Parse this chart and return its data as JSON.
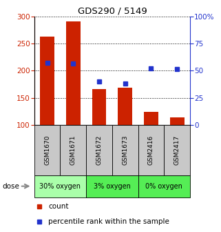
{
  "title": "GDS290 / 5149",
  "samples": [
    "GSM1670",
    "GSM1671",
    "GSM1672",
    "GSM1673",
    "GSM2416",
    "GSM2417"
  ],
  "counts": [
    263,
    291,
    167,
    169,
    124,
    115
  ],
  "percentile_left_axis": [
    215,
    213,
    180,
    176,
    204,
    203
  ],
  "ylim_left": [
    100,
    300
  ],
  "ylim_right": [
    0,
    100
  ],
  "yticks_left": [
    100,
    150,
    200,
    250,
    300
  ],
  "yticks_right": [
    0,
    25,
    50,
    75,
    100
  ],
  "bar_color": "#cc2200",
  "marker_color": "#2233cc",
  "bar_width": 0.55,
  "left_axis_color": "#cc2200",
  "right_axis_color": "#2233cc",
  "dose_label": "dose",
  "legend_count_label": "count",
  "legend_percentile_label": "percentile rank within the sample",
  "sample_box_color": "#c8c8c8",
  "group_labels": [
    "30% oxygen",
    "3% oxygen",
    "0% oxygen"
  ],
  "group_colors": [
    "#aaffaa",
    "#55ee55",
    "#55ee55"
  ],
  "group_ranges": [
    [
      0,
      1
    ],
    [
      2,
      3
    ],
    [
      4,
      5
    ]
  ]
}
